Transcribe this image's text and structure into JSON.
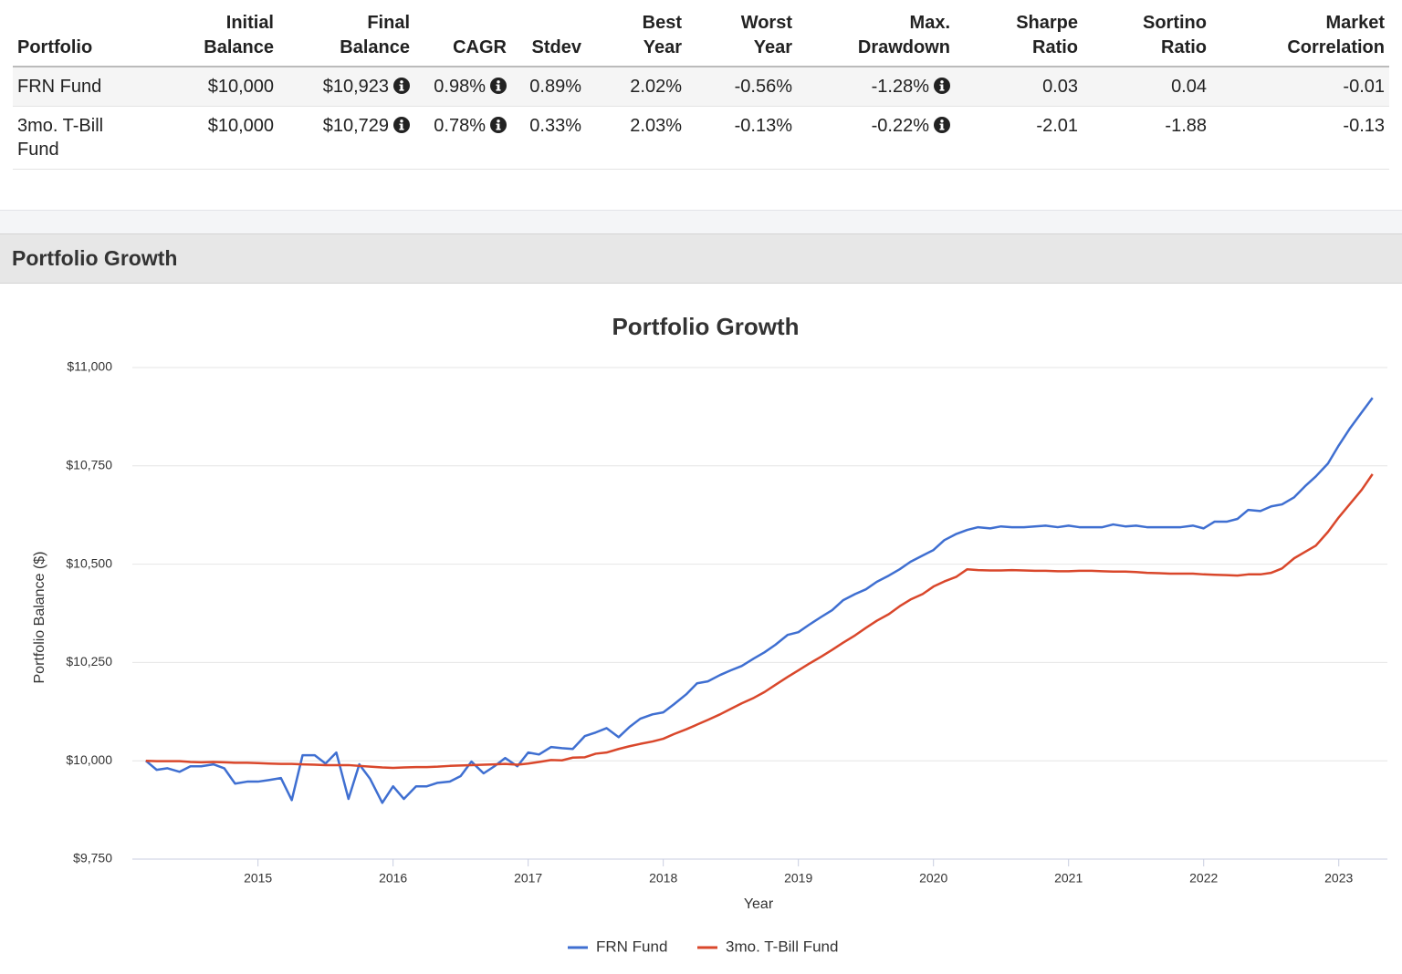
{
  "table": {
    "header": [
      "Portfolio",
      "Initial Balance",
      "Final Balance",
      "CAGR",
      "Stdev",
      "Best Year",
      "Worst Year",
      "Max. Drawdown",
      "Sharpe Ratio",
      "Sortino Ratio",
      "Market Correlation"
    ],
    "rows": [
      [
        "FRN Fund",
        "$10,000",
        "$10,923",
        "0.98%",
        "0.89%",
        "2.02%",
        "-0.56%",
        "-1.28%",
        "0.03",
        "0.04",
        "-0.01"
      ],
      [
        "3mo. T-Bill Fund",
        "$10,000",
        "$10,729",
        "0.78%",
        "0.33%",
        "2.03%",
        "-0.13%",
        "-0.22%",
        "-2.01",
        "-1.88",
        "-0.13"
      ]
    ]
  },
  "section": {
    "title": "Portfolio Growth"
  },
  "chart_data": {
    "type": "line",
    "title": "Portfolio Growth",
    "xlabel": "Year",
    "ylabel": "Portfolio Balance ($)",
    "x": [
      2014.17,
      2014.25,
      2014.33,
      2014.42,
      2014.5,
      2014.58,
      2014.67,
      2014.75,
      2014.83,
      2014.92,
      2015,
      2015.08,
      2015.17,
      2015.25,
      2015.33,
      2015.42,
      2015.5,
      2015.58,
      2015.67,
      2015.75,
      2015.83,
      2015.92,
      2016,
      2016.08,
      2016.17,
      2016.25,
      2016.33,
      2016.42,
      2016.5,
      2016.58,
      2016.67,
      2016.75,
      2016.83,
      2016.92,
      2017,
      2017.08,
      2017.17,
      2017.25,
      2017.33,
      2017.42,
      2017.5,
      2017.58,
      2017.67,
      2017.75,
      2017.83,
      2017.92,
      2018,
      2018.08,
      2018.17,
      2018.25,
      2018.33,
      2018.42,
      2018.5,
      2018.58,
      2018.67,
      2018.75,
      2018.83,
      2018.92,
      2019,
      2019.08,
      2019.17,
      2019.25,
      2019.33,
      2019.42,
      2019.5,
      2019.58,
      2019.67,
      2019.75,
      2019.83,
      2019.92,
      2020,
      2020.08,
      2020.17,
      2020.25,
      2020.33,
      2020.42,
      2020.5,
      2020.58,
      2020.67,
      2020.75,
      2020.83,
      2020.92,
      2021,
      2021.08,
      2021.17,
      2021.25,
      2021.33,
      2021.42,
      2021.5,
      2021.58,
      2021.67,
      2021.75,
      2021.83,
      2021.92,
      2022,
      2022.08,
      2022.17,
      2022.25,
      2022.33,
      2022.42,
      2022.5,
      2022.58,
      2022.67,
      2022.75,
      2022.83,
      2022.92,
      2023,
      2023.08,
      2023.17,
      2023.25
    ],
    "series": [
      {
        "name": "FRN Fund",
        "color": "#3f6fd1",
        "values": [
          10000,
          9977,
          9981,
          9972,
          9986,
          9986,
          9991,
          9981,
          9942,
          9947,
          9947,
          9951,
          9956,
          9900,
          10014,
          10014,
          9993,
          10021,
          9903,
          9991,
          9954,
          9893,
          9935,
          9903,
          9935,
          9935,
          9944,
          9947,
          9961,
          9998,
          9968,
          9986,
          10007,
          9986,
          10021,
          10016,
          10035,
          10032,
          10030,
          10063,
          10072,
          10083,
          10060,
          10086,
          10107,
          10118,
          10123,
          10144,
          10169,
          10197,
          10202,
          10218,
          10230,
          10241,
          10260,
          10276,
          10295,
          10320,
          10327,
          10346,
          10366,
          10383,
          10408,
          10424,
          10436,
          10455,
          10471,
          10487,
          10506,
          10522,
          10536,
          10561,
          10577,
          10587,
          10594,
          10591,
          10596,
          10594,
          10594,
          10596,
          10598,
          10594,
          10598,
          10594,
          10594,
          10594,
          10601,
          10596,
          10598,
          10594,
          10594,
          10594,
          10594,
          10598,
          10591,
          10608,
          10608,
          10615,
          10638,
          10635,
          10647,
          10652,
          10670,
          10698,
          10723,
          10756,
          10802,
          10844,
          10886,
          10923
        ]
      },
      {
        "name": "3mo. T-Bill Fund",
        "color": "#d9472b",
        "values": [
          10000,
          9999,
          9999,
          9999,
          9997,
          9996,
          9997,
          9996,
          9995,
          9995,
          9994,
          9993,
          9992,
          9992,
          9991,
          9990,
          9989,
          9989,
          9989,
          9987,
          9985,
          9983,
          9982,
          9983,
          9984,
          9984,
          9985,
          9987,
          9988,
          9989,
          9990,
          9991,
          9992,
          9990,
          9993,
          9997,
          10002,
          10001,
          10008,
          10009,
          10018,
          10021,
          10030,
          10037,
          10043,
          10049,
          10056,
          10068,
          10080,
          10092,
          10104,
          10118,
          10132,
          10146,
          10160,
          10175,
          10193,
          10213,
          10230,
          10247,
          10265,
          10282,
          10300,
          10319,
          10338,
          10356,
          10373,
          10393,
          10410,
          10424,
          10443,
          10456,
          10468,
          10487,
          10485,
          10484,
          10484,
          10485,
          10484,
          10483,
          10483,
          10482,
          10482,
          10483,
          10483,
          10482,
          10481,
          10481,
          10480,
          10478,
          10477,
          10476,
          10476,
          10476,
          10474,
          10473,
          10472,
          10471,
          10474,
          10474,
          10478,
          10489,
          10515,
          10531,
          10547,
          10582,
          10619,
          10652,
          10689,
          10729
        ]
      }
    ],
    "xlim": [
      2014.07,
      2023.36
    ],
    "xticks": [
      2015,
      2016,
      2017,
      2018,
      2019,
      2020,
      2021,
      2022,
      2023
    ],
    "ylim": [
      9750,
      11000
    ],
    "yticks": [
      {
        "value": 9750,
        "label": "$9,750"
      },
      {
        "value": 10000,
        "label": "$10,000"
      },
      {
        "value": 10250,
        "label": "$10,250"
      },
      {
        "value": 10500,
        "label": "$10,500"
      },
      {
        "value": 10750,
        "label": "$10,750"
      },
      {
        "value": 11000,
        "label": "$11,000"
      }
    ],
    "grid": true
  }
}
